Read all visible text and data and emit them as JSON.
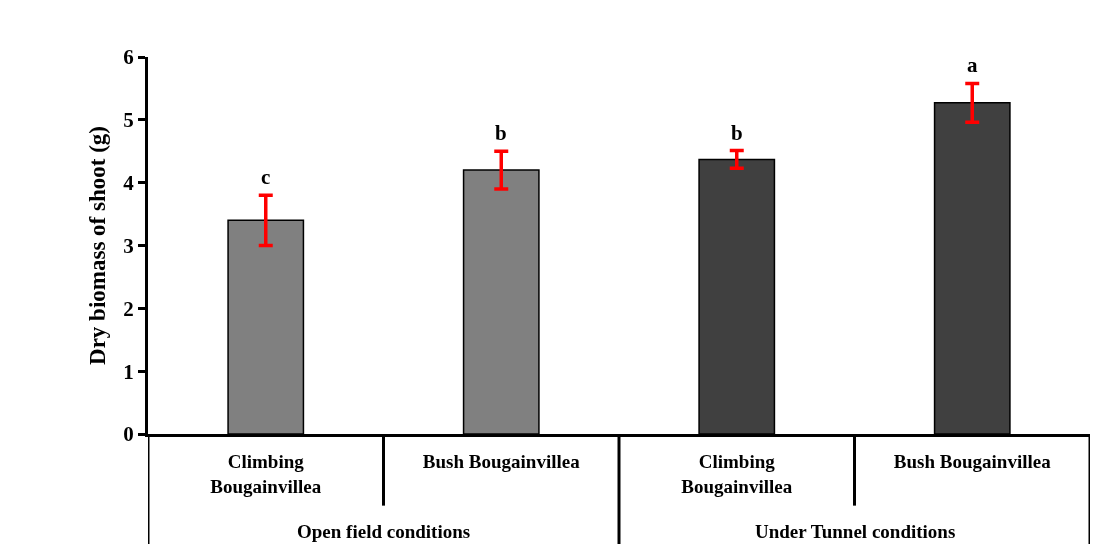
{
  "chart_data": {
    "type": "bar",
    "ylabel": "Dry biomass of shoot (g)",
    "categories": [
      "Climbing Bougainvillea",
      "Bush Bougainvillea",
      "Climbing Bougainvillea",
      "Bush Bougainvillea"
    ],
    "values": [
      3.4,
      4.2,
      4.37,
      5.27
    ],
    "colors": [
      "#808080",
      "#808080",
      "#404040",
      "#404040"
    ],
    "errors": [
      0.4,
      0.3,
      0.14,
      0.31
    ],
    "value_labels": [
      "c",
      "b",
      "b",
      "a"
    ],
    "ylim": [
      0,
      6
    ],
    "yticks": [
      0,
      1,
      2,
      3,
      4,
      5,
      6
    ],
    "grid": false,
    "annotations": [
      "Open field conditions",
      "Under Tunnel conditions"
    ]
  }
}
